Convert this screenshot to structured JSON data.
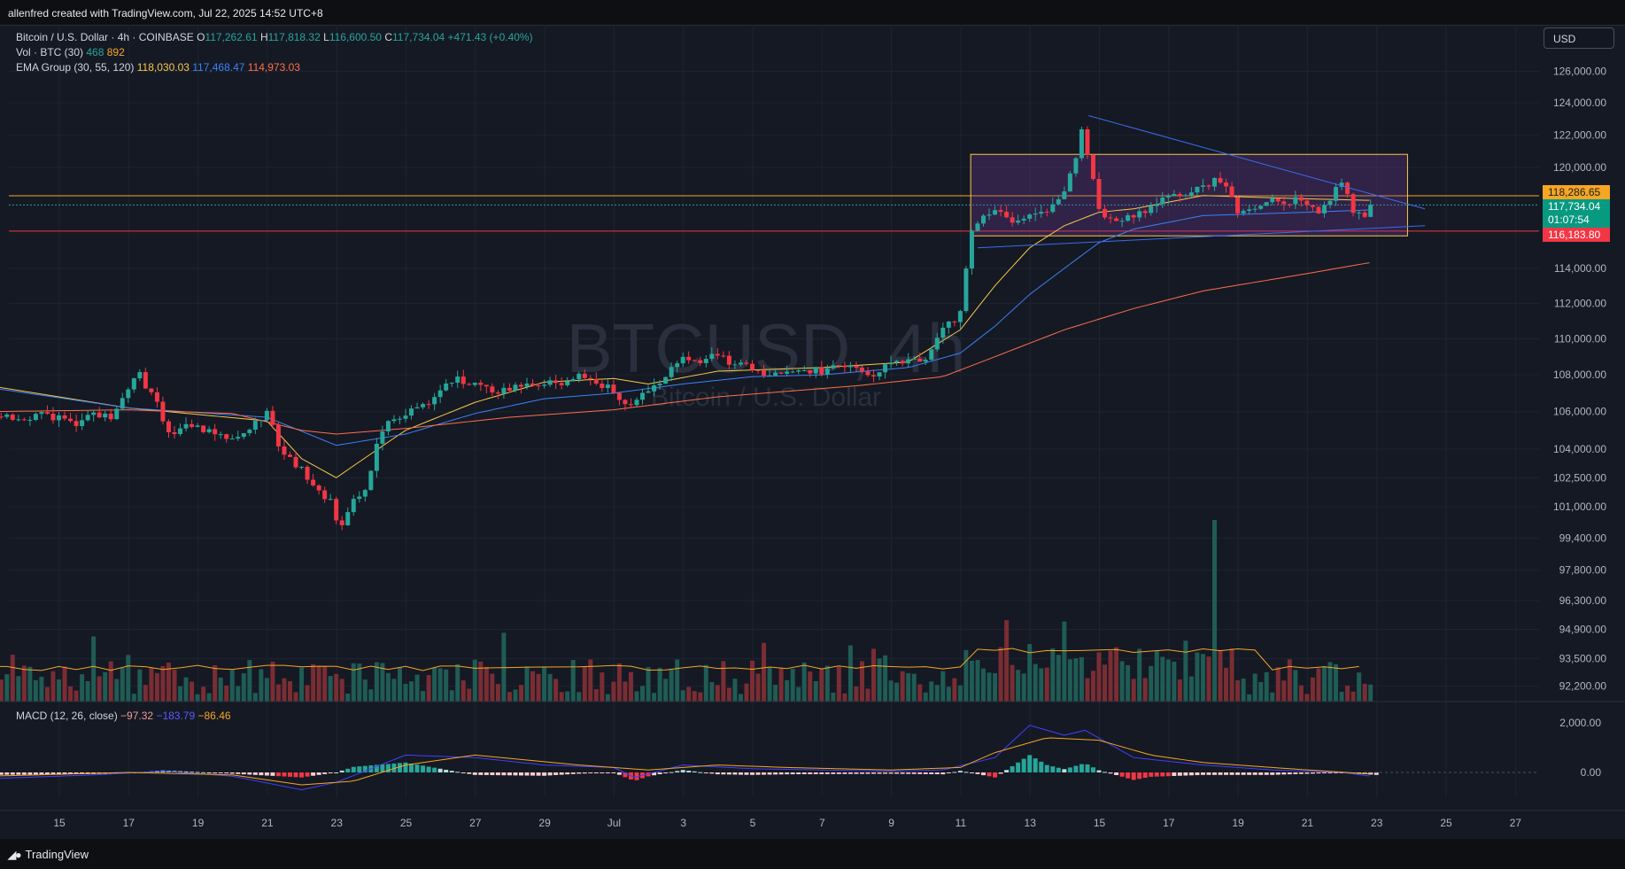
{
  "header": {
    "attribution": "allenfred created with TradingView.com, Jul 22, 2025 14:52 UTC+8"
  },
  "legend": {
    "symbol": "Bitcoin / U.S. Dollar · 4h · COINBASE",
    "o_label": "O",
    "o_value": "117,262.61",
    "h_label": "H",
    "h_value": "117,818.32",
    "l_label": "L",
    "l_value": "116,600.50",
    "c_label": "C",
    "c_value": "117,734.04",
    "change": "+471.43 (+0.40%)",
    "vol_label": "Vol · BTC (30)",
    "vol_value": "468",
    "vol_ma": "892",
    "ema_label": "EMA Group (30, 55, 120)",
    "ema1": "118,030.03",
    "ema2": "117,468.47",
    "ema3": "114,973.03",
    "macd_label": "MACD (12, 26, close)",
    "macd_hist": "−97.32",
    "macd_line": "−183.79",
    "macd_signal": "−86.46"
  },
  "currency_button": "USD",
  "watermark": {
    "ticker": "BTCUSD, 4h",
    "name": "Bitcoin / U.S. Dollar"
  },
  "price_badges": {
    "orange_level": "118,286.65",
    "last_price": "117,734.04",
    "countdown": "01:07:54",
    "red_level": "116,183.80"
  },
  "footer": {
    "brand": "TradingView"
  },
  "colors": {
    "up": "#26a69a",
    "down": "#f23645",
    "ema30": "#f7c948",
    "ema55": "#3b82f6",
    "ema120": "#ff6f4a",
    "macd": "#4040ff",
    "signal": "#f5a623",
    "background": "#151924"
  },
  "chart_data": {
    "type": "candlestick",
    "symbol": "BTCUSD",
    "timeframe": "4h",
    "x_ticks": [
      "15",
      "17",
      "19",
      "21",
      "23",
      "25",
      "27",
      "29",
      "Jul",
      "3",
      "5",
      "7",
      "9",
      "11",
      "13",
      "15",
      "17",
      "19",
      "21",
      "23",
      "25",
      "27"
    ],
    "y_ticks": [
      "126,000.00",
      "124,000.00",
      "122,000.00",
      "120,000.00",
      "114,000.00",
      "112,000.00",
      "110,000.00",
      "108,000.00",
      "106,000.00",
      "104,000.00",
      "102,500.00",
      "101,000.00",
      "99,400.00",
      "97,800.00",
      "96,300.00",
      "94,900.00",
      "93,500.00",
      "92,200.00"
    ],
    "y_tick_values": [
      126000,
      124000,
      122000,
      120000,
      114000,
      112000,
      110000,
      108000,
      106000,
      104000,
      102500,
      101000,
      99400,
      97800,
      96300,
      94900,
      93500,
      92200
    ],
    "scale": "log",
    "macd_ticks": [
      "2,000.00",
      "0.00"
    ],
    "price_anchors": [
      [
        13.0,
        106000
      ],
      [
        13.5,
        105700
      ],
      [
        14.0,
        105500
      ],
      [
        14.5,
        105800
      ],
      [
        15.0,
        105600
      ],
      [
        15.5,
        105400
      ],
      [
        16.0,
        105900
      ],
      [
        16.5,
        105800
      ],
      [
        17.0,
        107100
      ],
      [
        17.3,
        108400
      ],
      [
        17.5,
        107300
      ],
      [
        17.8,
        106800
      ],
      [
        18.0,
        105400
      ],
      [
        18.3,
        104600
      ],
      [
        18.6,
        105400
      ],
      [
        19.0,
        105200
      ],
      [
        19.5,
        104800
      ],
      [
        20.0,
        104600
      ],
      [
        20.5,
        105200
      ],
      [
        21.0,
        106000
      ],
      [
        21.3,
        104400
      ],
      [
        21.6,
        103500
      ],
      [
        22.0,
        102900
      ],
      [
        22.3,
        102000
      ],
      [
        22.6,
        101600
      ],
      [
        22.9,
        101100
      ],
      [
        23.1,
        99400
      ],
      [
        23.3,
        100800
      ],
      [
        23.6,
        101500
      ],
      [
        23.9,
        102100
      ],
      [
        24.2,
        104500
      ],
      [
        24.5,
        105300
      ],
      [
        25.0,
        106000
      ],
      [
        25.5,
        106300
      ],
      [
        26.0,
        107200
      ],
      [
        26.5,
        107700
      ],
      [
        27.0,
        107500
      ],
      [
        27.5,
        107000
      ],
      [
        28.0,
        107300
      ],
      [
        28.5,
        107400
      ],
      [
        29.0,
        107500
      ],
      [
        29.5,
        107600
      ],
      [
        30.0,
        108100
      ],
      [
        30.5,
        107600
      ],
      [
        31.0,
        107100
      ],
      [
        31.3,
        106200
      ],
      [
        31.6,
        106500
      ],
      [
        32.0,
        107200
      ],
      [
        32.5,
        108000
      ],
      [
        33.0,
        109100
      ],
      [
        33.5,
        108800
      ],
      [
        34.0,
        109100
      ],
      [
        34.5,
        108600
      ],
      [
        35.0,
        108300
      ],
      [
        35.5,
        108000
      ],
      [
        36.0,
        108200
      ],
      [
        36.5,
        108300
      ],
      [
        37.0,
        108200
      ],
      [
        37.5,
        108600
      ],
      [
        38.0,
        108300
      ],
      [
        38.5,
        108100
      ],
      [
        39.0,
        108500
      ],
      [
        39.5,
        108700
      ],
      [
        40.0,
        108900
      ],
      [
        40.5,
        110500
      ],
      [
        40.8,
        111000
      ],
      [
        41.0,
        111600
      ],
      [
        41.1,
        113000
      ],
      [
        41.3,
        116000
      ],
      [
        41.6,
        117000
      ],
      [
        42.0,
        117300
      ],
      [
        42.5,
        116800
      ],
      [
        43.0,
        117200
      ],
      [
        43.5,
        117300
      ],
      [
        44.0,
        118500
      ],
      [
        44.3,
        120200
      ],
      [
        44.5,
        122500
      ],
      [
        44.7,
        120500
      ],
      [
        45.0,
        117500
      ],
      [
        45.3,
        116700
      ],
      [
        45.6,
        117000
      ],
      [
        46.0,
        116900
      ],
      [
        46.5,
        117700
      ],
      [
        47.0,
        118300
      ],
      [
        47.5,
        118500
      ],
      [
        48.0,
        118700
      ],
      [
        48.3,
        119200
      ],
      [
        48.6,
        118900
      ],
      [
        49.0,
        117400
      ],
      [
        49.5,
        117600
      ],
      [
        50.0,
        117900
      ],
      [
        50.5,
        118000
      ],
      [
        51.0,
        117900
      ],
      [
        51.3,
        117300
      ],
      [
        51.6,
        117800
      ],
      [
        52.0,
        119300
      ],
      [
        52.3,
        117500
      ],
      [
        52.6,
        116900
      ],
      [
        52.9,
        117700
      ]
    ],
    "ema30_anchors": [
      [
        13,
        107400
      ],
      [
        17,
        106200
      ],
      [
        21,
        105500
      ],
      [
        22,
        103500
      ],
      [
        23,
        102500
      ],
      [
        25,
        105000
      ],
      [
        27,
        106500
      ],
      [
        29,
        107600
      ],
      [
        31,
        107800
      ],
      [
        32,
        107500
      ],
      [
        34,
        108200
      ],
      [
        37,
        108400
      ],
      [
        39.5,
        108700
      ],
      [
        41,
        110500
      ],
      [
        42,
        113000
      ],
      [
        43,
        115200
      ],
      [
        44,
        116500
      ],
      [
        45,
        117300
      ],
      [
        46,
        117500
      ],
      [
        48,
        118300
      ],
      [
        51,
        118100
      ],
      [
        53,
        118000
      ]
    ],
    "ema55_anchors": [
      [
        13,
        107300
      ],
      [
        17,
        106200
      ],
      [
        21,
        105700
      ],
      [
        23,
        104200
      ],
      [
        25,
        104800
      ],
      [
        27,
        105900
      ],
      [
        29,
        106700
      ],
      [
        31,
        107000
      ],
      [
        33,
        107500
      ],
      [
        35,
        107900
      ],
      [
        37,
        108000
      ],
      [
        39.5,
        108400
      ],
      [
        41,
        109200
      ],
      [
        42,
        110700
      ],
      [
        43,
        112500
      ],
      [
        44,
        114000
      ],
      [
        45,
        115500
      ],
      [
        46,
        116300
      ],
      [
        48,
        117100
      ],
      [
        51,
        117300
      ],
      [
        53,
        117450
      ]
    ],
    "ema120_anchors": [
      [
        13,
        106000
      ],
      [
        17,
        106100
      ],
      [
        20,
        105900
      ],
      [
        22,
        105000
      ],
      [
        23,
        104800
      ],
      [
        25,
        105100
      ],
      [
        28,
        105700
      ],
      [
        31,
        106100
      ],
      [
        34,
        106800
      ],
      [
        38,
        107400
      ],
      [
        40.5,
        107900
      ],
      [
        42,
        109000
      ],
      [
        44,
        110500
      ],
      [
        46,
        111700
      ],
      [
        48,
        112700
      ],
      [
        51,
        113700
      ],
      [
        53,
        114400
      ]
    ],
    "horizontal_levels": [
      118286.65,
      117734.04,
      116183.8
    ],
    "range_box": {
      "x_from": 41.3,
      "x_to": 53.9,
      "price_from": 115900,
      "price_to": 120800
    },
    "triangle_lines": [
      {
        "from": [
          44.7,
          123200
        ],
        "to": [
          54.4,
          117500
        ]
      },
      {
        "from": [
          41.5,
          115200
        ],
        "to": [
          54.4,
          116500
        ]
      }
    ],
    "volume": {
      "label": "Vol · BTC (30)",
      "max_bar_at": 48.35
    },
    "macd": {
      "line_anchors": [
        [
          13,
          -250
        ],
        [
          16,
          -100
        ],
        [
          18,
          50
        ],
        [
          20,
          -150
        ],
        [
          22,
          -700
        ],
        [
          23,
          -400
        ],
        [
          25,
          700
        ],
        [
          27,
          600
        ],
        [
          29,
          300
        ],
        [
          31,
          200
        ],
        [
          31.6,
          -200
        ],
        [
          33,
          300
        ],
        [
          35,
          150
        ],
        [
          37,
          100
        ],
        [
          39,
          50
        ],
        [
          40.5,
          100
        ],
        [
          42,
          600
        ],
        [
          43,
          1900
        ],
        [
          44,
          1500
        ],
        [
          44.6,
          1700
        ],
        [
          46,
          600
        ],
        [
          48,
          300
        ],
        [
          50,
          100
        ],
        [
          52,
          0
        ],
        [
          53,
          -180
        ]
      ],
      "signal_anchors": [
        [
          13,
          -150
        ],
        [
          17,
          0
        ],
        [
          20,
          -100
        ],
        [
          22,
          -500
        ],
        [
          23.5,
          -350
        ],
        [
          25,
          300
        ],
        [
          27,
          700
        ],
        [
          30,
          300
        ],
        [
          32,
          100
        ],
        [
          34,
          300
        ],
        [
          36,
          200
        ],
        [
          39,
          100
        ],
        [
          41,
          200
        ],
        [
          42,
          800
        ],
        [
          43.5,
          1400
        ],
        [
          45,
          1300
        ],
        [
          46.5,
          700
        ],
        [
          48,
          400
        ],
        [
          50.5,
          150
        ],
        [
          53,
          -80
        ]
      ]
    }
  }
}
